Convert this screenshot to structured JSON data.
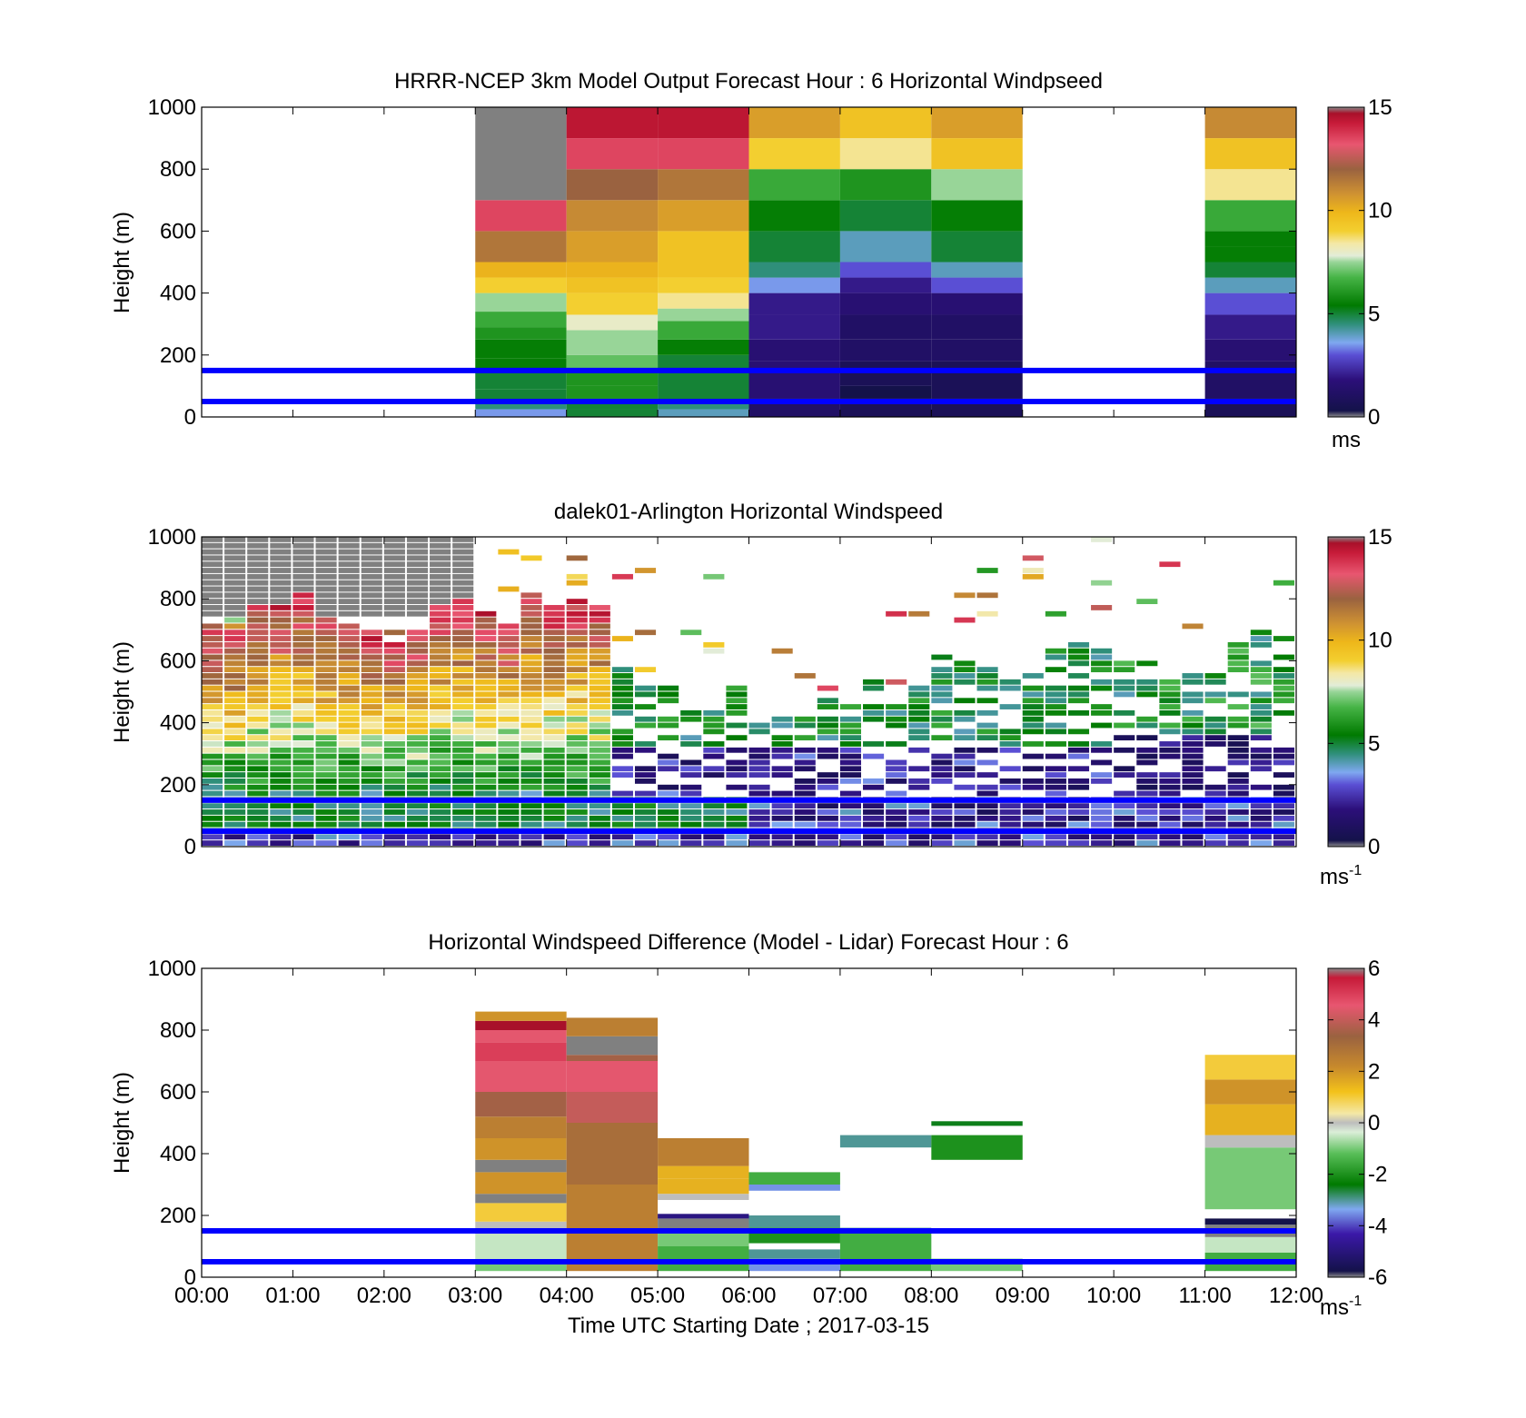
{
  "figure": {
    "xlabel": "Time UTC  Starting Date ; 2017-03-15"
  },
  "charts": [
    {
      "title": "HRRR-NCEP 3km Model Output   Forecast Hour : 6 Horizontal Windpseed",
      "ylabel": "Height (m)",
      "colorbar_unit": "ms",
      "colorbar_unit_sup": ""
    },
    {
      "title": "dalek01-Arlington  Horizontal Windspeed",
      "ylabel": "Height (m)",
      "colorbar_unit": "ms",
      "colorbar_unit_sup": "-1"
    },
    {
      "title": "Horizontal Windspeed Difference (Model - Lidar) Forecast Hour : 6",
      "ylabel": "Height (m)",
      "colorbar_unit": "ms",
      "colorbar_unit_sup": "-1"
    }
  ],
  "chart_data": [
    {
      "type": "heatmap",
      "title": "HRRR-NCEP 3km Model Output   Forecast Hour : 6 Horizontal Windpseed",
      "ylabel": "Height (m)",
      "ylim": [
        0,
        1000
      ],
      "yticks": [
        0,
        200,
        400,
        600,
        800,
        1000
      ],
      "xlim": [
        0,
        12
      ],
      "xticks": [
        "00:00",
        "01:00",
        "02:00",
        "03:00",
        "04:00",
        "05:00",
        "06:00",
        "07:00",
        "08:00",
        "09:00",
        "10:00",
        "11:00",
        "12:00"
      ],
      "colorbar": {
        "min": 0,
        "max": 15,
        "ticks": [
          0,
          5,
          10,
          15
        ],
        "unit": "ms"
      },
      "reference_lines_m": [
        50,
        150
      ],
      "columns": [
        {
          "t0": 3,
          "t1": 4,
          "cells": [
            [
              0,
              25,
              3.5
            ],
            [
              25,
              50,
              4.5
            ],
            [
              50,
              90,
              5
            ],
            [
              90,
              150,
              5
            ],
            [
              150,
              190,
              5.5
            ],
            [
              190,
              250,
              5.5
            ],
            [
              250,
              290,
              6
            ],
            [
              290,
              340,
              6.5
            ],
            [
              340,
              400,
              7.5
            ],
            [
              400,
              450,
              9
            ],
            [
              450,
              500,
              10
            ],
            [
              500,
              600,
              11.5
            ],
            [
              600,
              700,
              13.5
            ],
            [
              700,
              1000,
              15.5
            ]
          ]
        },
        {
          "t0": 4,
          "t1": 5,
          "cells": [
            [
              0,
              25,
              5
            ],
            [
              25,
              60,
              5
            ],
            [
              60,
              100,
              6
            ],
            [
              100,
              150,
              6
            ],
            [
              150,
              200,
              7
            ],
            [
              200,
              280,
              7.5
            ],
            [
              280,
              330,
              8
            ],
            [
              330,
              400,
              9
            ],
            [
              400,
              450,
              9.5
            ],
            [
              450,
              500,
              10
            ],
            [
              500,
              600,
              10.5
            ],
            [
              600,
              700,
              11
            ],
            [
              700,
              800,
              12
            ],
            [
              800,
              900,
              13.5
            ],
            [
              900,
              1000,
              14.5
            ]
          ]
        },
        {
          "t0": 5,
          "t1": 6,
          "cells": [
            [
              0,
              25,
              4
            ],
            [
              25,
              50,
              4.5
            ],
            [
              50,
              150,
              5
            ],
            [
              150,
              200,
              5
            ],
            [
              200,
              250,
              5.5
            ],
            [
              250,
              310,
              6.5
            ],
            [
              310,
              350,
              7.5
            ],
            [
              350,
              400,
              8.5
            ],
            [
              400,
              450,
              9
            ],
            [
              450,
              600,
              9.5
            ],
            [
              600,
              700,
              10.5
            ],
            [
              700,
              800,
              11.5
            ],
            [
              800,
              900,
              13.5
            ],
            [
              900,
              1000,
              14.5
            ]
          ]
        },
        {
          "t0": 6,
          "t1": 7,
          "cells": [
            [
              0,
              60,
              1
            ],
            [
              60,
              180,
              1.5
            ],
            [
              180,
              250,
              1.5
            ],
            [
              250,
              330,
              2
            ],
            [
              330,
              400,
              2
            ],
            [
              400,
              450,
              3.5
            ],
            [
              450,
              500,
              4.5
            ],
            [
              500,
              600,
              5
            ],
            [
              600,
              700,
              5.5
            ],
            [
              700,
              800,
              6.5
            ],
            [
              800,
              900,
              9
            ],
            [
              900,
              1000,
              10.5
            ]
          ]
        },
        {
          "t0": 7,
          "t1": 8,
          "cells": [
            [
              0,
              60,
              0.5
            ],
            [
              60,
              100,
              0
            ],
            [
              100,
              180,
              0.5
            ],
            [
              180,
              250,
              1
            ],
            [
              250,
              330,
              1
            ],
            [
              330,
              400,
              1.5
            ],
            [
              400,
              450,
              2
            ],
            [
              450,
              500,
              3
            ],
            [
              500,
              600,
              4
            ],
            [
              600,
              700,
              5
            ],
            [
              700,
              800,
              6
            ],
            [
              800,
              900,
              8.5
            ],
            [
              900,
              1000,
              9.5
            ]
          ]
        },
        {
          "t0": 8,
          "t1": 9,
          "cells": [
            [
              0,
              60,
              0.5
            ],
            [
              60,
              180,
              0.5
            ],
            [
              180,
              250,
              1
            ],
            [
              250,
              330,
              1
            ],
            [
              330,
              400,
              1.5
            ],
            [
              400,
              450,
              3
            ],
            [
              450,
              500,
              4
            ],
            [
              500,
              600,
              5
            ],
            [
              600,
              700,
              5.5
            ],
            [
              700,
              800,
              7.5
            ],
            [
              800,
              900,
              9.5
            ],
            [
              900,
              1000,
              10.5
            ]
          ]
        },
        {
          "t0": 11,
          "t1": 12,
          "cells": [
            [
              0,
              60,
              0.5
            ],
            [
              60,
              180,
              1
            ],
            [
              180,
              250,
              1.5
            ],
            [
              250,
              330,
              2
            ],
            [
              330,
              400,
              3
            ],
            [
              400,
              450,
              4
            ],
            [
              450,
              500,
              5
            ],
            [
              500,
              550,
              5.5
            ],
            [
              550,
              600,
              5.5
            ],
            [
              600,
              700,
              6.5
            ],
            [
              700,
              800,
              8.5
            ],
            [
              800,
              900,
              9.5
            ],
            [
              900,
              1000,
              11
            ]
          ]
        }
      ]
    },
    {
      "type": "heatmap",
      "title": "dalek01-Arlington  Horizontal Windspeed",
      "ylabel": "Height (m)",
      "ylim": [
        0,
        1000
      ],
      "yticks": [
        0,
        200,
        400,
        600,
        800,
        1000
      ],
      "xlim": [
        0,
        12
      ],
      "xticks": [
        "00:00",
        "01:00",
        "02:00",
        "03:00",
        "04:00",
        "05:00",
        "06:00",
        "07:00",
        "08:00",
        "09:00",
        "10:00",
        "11:00",
        "12:00"
      ],
      "colorbar": {
        "min": 0,
        "max": 15,
        "ticks": [
          0,
          5,
          10,
          15
        ],
        "unit": "ms-1"
      },
      "reference_lines_m": [
        50,
        150
      ],
      "profile_interval_h": 0.25,
      "profile_tops_m": [
        700,
        690,
        780,
        780,
        820,
        730,
        710,
        690,
        650,
        700,
        780,
        800,
        760,
        720,
        820,
        770,
        800,
        780,
        600,
        540,
        510,
        480,
        460,
        520,
        420,
        440,
        420,
        470,
        460,
        560,
        500,
        520,
        620,
        600,
        580,
        540,
        560,
        640,
        660,
        640,
        610,
        600,
        580,
        560,
        550,
        650,
        700,
        710,
        700,
        720,
        680,
        630,
        650,
        700,
        680,
        720,
        730,
        720,
        700,
        660
      ],
      "notes": "Lidar profiles: strong speeds 8-15 m/s 00:00-04:30 above 200 m, grey missing region above 750 m before 03:00, sparse returns after 05:00, low-level speeds 0-5 m/s."
    },
    {
      "type": "heatmap",
      "title": "Horizontal Windspeed Difference (Model - Lidar) Forecast Hour : 6",
      "ylabel": "Height (m)",
      "xlabel": "Time UTC  Starting Date ; 2017-03-15",
      "ylim": [
        0,
        1000
      ],
      "yticks": [
        0,
        200,
        400,
        600,
        800,
        1000
      ],
      "xlim": [
        0,
        12
      ],
      "xticks": [
        "00:00",
        "01:00",
        "02:00",
        "03:00",
        "04:00",
        "05:00",
        "06:00",
        "07:00",
        "08:00",
        "09:00",
        "10:00",
        "11:00",
        "12:00"
      ],
      "colorbar": {
        "min": -6,
        "max": 6,
        "ticks": [
          -6,
          -4,
          -2,
          0,
          2,
          4,
          6
        ],
        "unit": "ms-1"
      },
      "reference_lines_m": [
        50,
        150
      ],
      "columns": [
        {
          "t0": 3,
          "t1": 4,
          "cells": [
            [
              20,
              50,
              -1
            ],
            [
              50,
              100,
              -0.5
            ],
            [
              100,
              140,
              -0.5
            ],
            [
              140,
              180,
              0
            ],
            [
              180,
              240,
              1
            ],
            [
              240,
              270,
              null
            ],
            [
              270,
              340,
              2
            ],
            [
              340,
              380,
              null
            ],
            [
              380,
              450,
              2
            ],
            [
              450,
              520,
              2.5
            ],
            [
              520,
              600,
              3.5
            ],
            [
              600,
              700,
              4.5
            ],
            [
              700,
              760,
              5
            ],
            [
              760,
              800,
              4.5
            ],
            [
              800,
              830,
              6
            ],
            [
              830,
              860,
              2
            ]
          ]
        },
        {
          "t0": 4,
          "t1": 5,
          "cells": [
            [
              20,
              150,
              2.5
            ],
            [
              150,
              300,
              2.5
            ],
            [
              300,
              400,
              3
            ],
            [
              400,
              500,
              3
            ],
            [
              500,
              600,
              4
            ],
            [
              600,
              700,
              4.5
            ],
            [
              700,
              720,
              3.5
            ],
            [
              720,
              780,
              null
            ],
            [
              780,
              840,
              2.5
            ]
          ]
        },
        {
          "t0": 5,
          "t1": 6,
          "cells": [
            [
              20,
              100,
              -1.5
            ],
            [
              100,
              150,
              -1
            ],
            [
              150,
              190,
              null
            ],
            [
              190,
              205,
              -5
            ],
            [
              250,
              270,
              0
            ],
            [
              270,
              320,
              1.5
            ],
            [
              320,
              360,
              1.5
            ],
            [
              360,
              450,
              2.5
            ]
          ]
        },
        {
          "t0": 6,
          "t1": 7,
          "cells": [
            [
              20,
              60,
              -3.5
            ],
            [
              60,
              90,
              -3
            ],
            [
              110,
              160,
              -2
            ],
            [
              160,
              200,
              -3
            ],
            [
              280,
              300,
              -3.5
            ],
            [
              300,
              340,
              -1.5
            ]
          ]
        },
        {
          "t0": 7,
          "t1": 8,
          "cells": [
            [
              20,
              150,
              -1.5
            ],
            [
              150,
              160,
              -3
            ],
            [
              420,
              460,
              -3
            ]
          ]
        },
        {
          "t0": 8,
          "t1": 9,
          "cells": [
            [
              20,
              60,
              -1
            ],
            [
              380,
              460,
              -2
            ],
            [
              490,
              505,
              -2.5
            ]
          ]
        },
        {
          "t0": 11,
          "t1": 12,
          "cells": [
            [
              20,
              80,
              -1.5
            ],
            [
              80,
              130,
              -0.5
            ],
            [
              130,
              170,
              null
            ],
            [
              170,
              190,
              -6
            ],
            [
              220,
              420,
              -1
            ],
            [
              420,
              460,
              0
            ],
            [
              460,
              560,
              1.5
            ],
            [
              560,
              640,
              2
            ],
            [
              640,
              720,
              1
            ]
          ]
        }
      ]
    }
  ]
}
